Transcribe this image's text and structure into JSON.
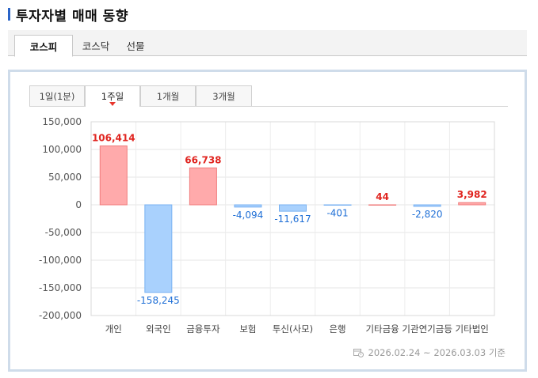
{
  "header": {
    "title": "투자자별 매매 동향"
  },
  "market_tabs": [
    {
      "label": "코스피",
      "active": true
    },
    {
      "label": "코스닥",
      "active": false
    },
    {
      "label": "선물",
      "active": false
    }
  ],
  "period_tabs": [
    {
      "label": "1일(1분)",
      "active": false
    },
    {
      "label": "1주일",
      "active": true
    },
    {
      "label": "1개월",
      "active": false
    },
    {
      "label": "3개월",
      "active": false
    }
  ],
  "date_note": {
    "text": "2026.02.24 ~ 2026.03.03 기준",
    "icon": "calendar-icon"
  },
  "colors": {
    "positive_fill": "#ffaaab",
    "positive_label": "#e0241f",
    "negative_fill": "#a9d1fd",
    "negative_label": "#1f6fd6",
    "accent": "#2a64c8"
  },
  "chart_data": {
    "type": "bar",
    "categories": [
      "개인",
      "외국인",
      "금융투자",
      "보험",
      "투신(사모)",
      "은행",
      "기타금융",
      "기관연기금등",
      "기타법인"
    ],
    "values": [
      106414,
      -158245,
      66738,
      -4094,
      -11617,
      -401,
      44,
      -2820,
      3982
    ],
    "value_labels": [
      "106,414",
      "-158,245",
      "66,738",
      "-4,094",
      "-11,617",
      "-401",
      "44",
      "-2,820",
      "3,982"
    ],
    "ylim": [
      -200000,
      150000
    ],
    "y_ticks": [
      150000,
      100000,
      50000,
      0,
      -50000,
      -100000,
      -150000,
      -200000
    ],
    "y_tick_labels": [
      "150,000",
      "100,000",
      "50,000",
      "0",
      "-50,000",
      "-100,000",
      "-150,000",
      "-200,000"
    ],
    "grid": true
  }
}
